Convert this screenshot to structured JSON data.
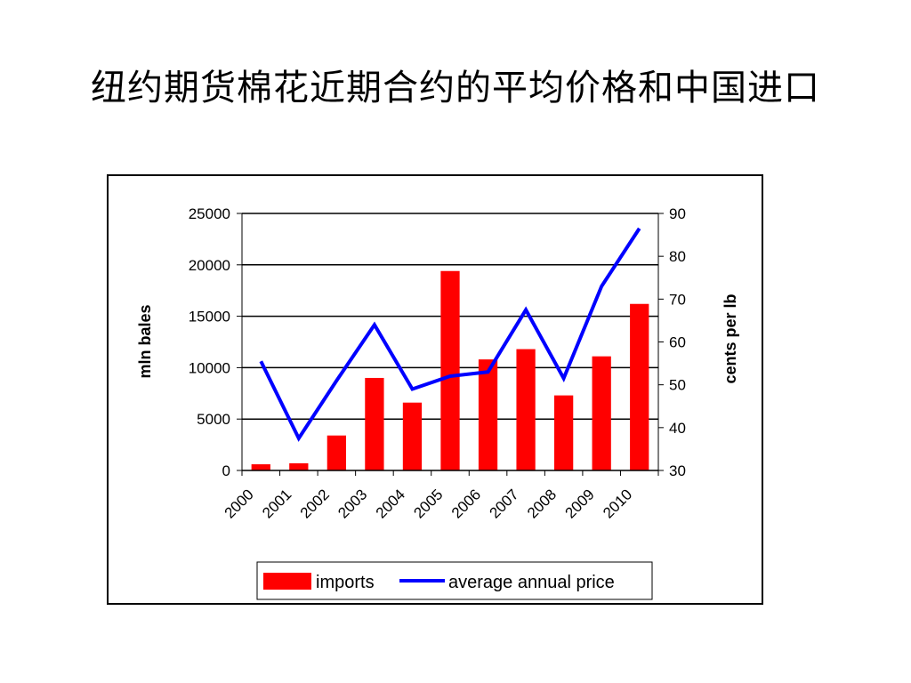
{
  "slide": {
    "title": "纽约期货棉花近期合约的平均价格和中国进口"
  },
  "colors": {
    "bar": "#ff0000",
    "line": "#0000ff",
    "grid": "#000000"
  },
  "chart_data": {
    "type": "bar",
    "categories": [
      "2000",
      "2001",
      "2002",
      "2003",
      "2004",
      "2005",
      "2006",
      "2007",
      "2008",
      "2009",
      "2010"
    ],
    "series": [
      {
        "name": "imports",
        "type": "bar",
        "axis": "left",
        "values": [
          600,
          700,
          3400,
          9000,
          6600,
          19400,
          10800,
          11800,
          7300,
          11100,
          16200
        ]
      },
      {
        "name": "average annual price",
        "type": "line",
        "axis": "right",
        "values": [
          55.5,
          37.5,
          51,
          64,
          49,
          52,
          53,
          67.5,
          51.5,
          73,
          86.5
        ]
      }
    ],
    "ylabel": "mln bales",
    "y2label": "cents per lb",
    "ylim": [
      0,
      25000
    ],
    "y2lim": [
      30,
      90
    ],
    "yticks": [
      "0",
      "5000",
      "10000",
      "15000",
      "20000",
      "25000"
    ],
    "y2ticks": [
      "30",
      "40",
      "50",
      "60",
      "70",
      "80",
      "90"
    ],
    "grid": true,
    "legend": "bottom"
  }
}
